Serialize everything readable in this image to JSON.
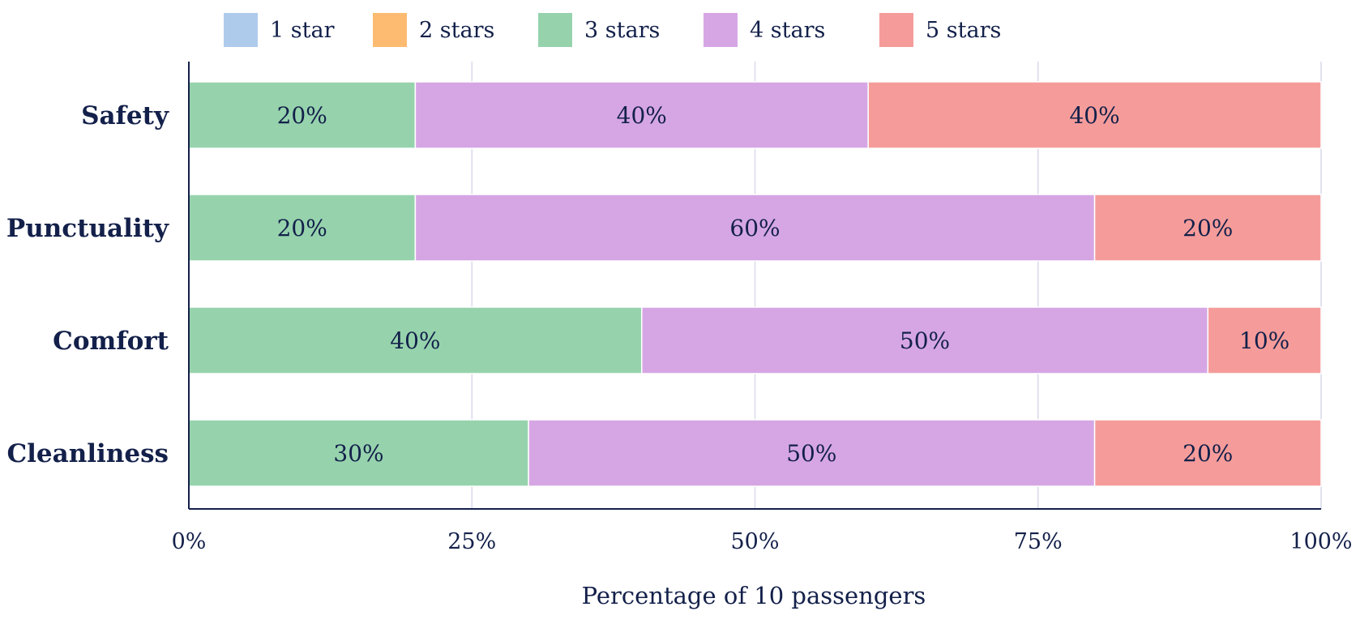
{
  "chart_data": {
    "type": "bar",
    "orientation": "horizontal",
    "stacked": true,
    "categories": [
      "Safety",
      "Punctuality",
      "Comfort",
      "Cleanliness"
    ],
    "series": [
      {
        "name": "1 star",
        "color": "#aecbeb",
        "values": [
          0,
          0,
          0,
          0
        ]
      },
      {
        "name": "2 stars",
        "color": "#fdbb71",
        "values": [
          0,
          0,
          0,
          0
        ]
      },
      {
        "name": "3 stars",
        "color": "#96d3ad",
        "values": [
          20,
          20,
          40,
          30
        ]
      },
      {
        "name": "4 stars",
        "color": "#d6a6e4",
        "values": [
          40,
          60,
          50,
          50
        ]
      },
      {
        "name": "5 stars",
        "color": "#f59c9a",
        "values": [
          40,
          20,
          10,
          20
        ]
      }
    ],
    "value_suffix": "%",
    "xlabel": "Percentage of 10 passengers",
    "xlim": [
      0,
      100
    ],
    "xticks": [
      0,
      25,
      50,
      75,
      100
    ],
    "xtick_labels": [
      "0%",
      "25%",
      "50%",
      "75%",
      "100%"
    ],
    "grid": true,
    "legend_position": "top"
  }
}
